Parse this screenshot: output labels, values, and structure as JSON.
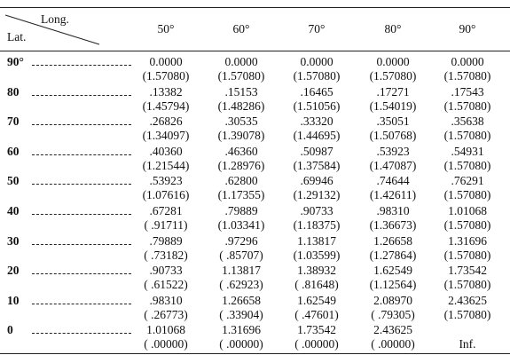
{
  "table": {
    "corner": {
      "top": "Long.",
      "bottom": "Lat."
    },
    "columns": [
      "50°",
      "60°",
      "70°",
      "80°",
      "90°"
    ],
    "rows": [
      {
        "lat": "90°",
        "cells": [
          {
            "line1": "0.0000",
            "line2": "(1.57080)"
          },
          {
            "line1": "0.0000",
            "line2": "(1.57080)"
          },
          {
            "line1": "0.0000",
            "line2": "(1.57080)"
          },
          {
            "line1": "0.0000",
            "line2": "(1.57080)"
          },
          {
            "line1": "0.0000",
            "line2": "(1.57080)"
          }
        ]
      },
      {
        "lat": "80",
        "cells": [
          {
            "line1": ".13382",
            "line2": "(1.45794)"
          },
          {
            "line1": ".15153",
            "line2": "(1.48286)"
          },
          {
            "line1": ".16465",
            "line2": "(1.51056)"
          },
          {
            "line1": ".17271",
            "line2": "(1.54019)"
          },
          {
            "line1": ".17543",
            "line2": "(1.57080)"
          }
        ]
      },
      {
        "lat": "70",
        "cells": [
          {
            "line1": ".26826",
            "line2": "(1.34097)"
          },
          {
            "line1": ".30535",
            "line2": "(1.39078)"
          },
          {
            "line1": ".33320",
            "line2": "(1.44695)"
          },
          {
            "line1": ".35051",
            "line2": "(1.50768)"
          },
          {
            "line1": ".35638",
            "line2": "(1.57080)"
          }
        ]
      },
      {
        "lat": "60",
        "cells": [
          {
            "line1": ".40360",
            "line2": "(1.21544)"
          },
          {
            "line1": ".46360",
            "line2": "(1.28976)"
          },
          {
            "line1": ".50987",
            "line2": "(1.37584)"
          },
          {
            "line1": ".53923",
            "line2": "(1.47087)"
          },
          {
            "line1": ".54931",
            "line2": "(1.57080)"
          }
        ]
      },
      {
        "lat": "50",
        "cells": [
          {
            "line1": ".53923",
            "line2": "(1.07616)"
          },
          {
            "line1": ".62800",
            "line2": "(1.17355)"
          },
          {
            "line1": ".69946",
            "line2": "(1.29132)"
          },
          {
            "line1": ".74644",
            "line2": "(1.42611)"
          },
          {
            "line1": ".76291",
            "line2": "(1.57080)"
          }
        ]
      },
      {
        "lat": "40",
        "cells": [
          {
            "line1": ".67281",
            "line2": "( .91711)"
          },
          {
            "line1": ".79889",
            "line2": "(1.03341)"
          },
          {
            "line1": ".90733",
            "line2": "(1.18375)"
          },
          {
            "line1": ".98310",
            "line2": "(1.36673)"
          },
          {
            "line1": "1.01068",
            "line2": "(1.57080)"
          }
        ]
      },
      {
        "lat": "30",
        "cells": [
          {
            "line1": ".79889",
            "line2": "( .73182)"
          },
          {
            "line1": ".97296",
            "line2": "( .85707)"
          },
          {
            "line1": "1.13817",
            "line2": "(1.03599)"
          },
          {
            "line1": "1.26658",
            "line2": "(1.27864)"
          },
          {
            "line1": "1.31696",
            "line2": "(1.57080)"
          }
        ]
      },
      {
        "lat": "20",
        "cells": [
          {
            "line1": ".90733",
            "line2": "( .61522)"
          },
          {
            "line1": "1.13817",
            "line2": "( .62923)"
          },
          {
            "line1": "1.38932",
            "line2": "( .81648)"
          },
          {
            "line1": "1.62549",
            "line2": "(1.12564)"
          },
          {
            "line1": "1.73542",
            "line2": "(1.57080)"
          }
        ]
      },
      {
        "lat": "10",
        "cells": [
          {
            "line1": ".98310",
            "line2": "( .26773)"
          },
          {
            "line1": "1.26658",
            "line2": "( .33904)"
          },
          {
            "line1": "1.62549",
            "line2": "( .47601)"
          },
          {
            "line1": "2.08970",
            "line2": "( .79305)"
          },
          {
            "line1": "2.43625",
            "line2": "(1.57080)"
          }
        ]
      },
      {
        "lat": "0",
        "cells": [
          {
            "line1": "1.01068",
            "line2": "( .00000)"
          },
          {
            "line1": "1.31696",
            "line2": "( .00000)"
          },
          {
            "line1": "1.73542",
            "line2": "( .00000)"
          },
          {
            "line1": "2.43625",
            "line2": "( .00000)"
          },
          {
            "line2": "Inf."
          }
        ]
      }
    ]
  }
}
